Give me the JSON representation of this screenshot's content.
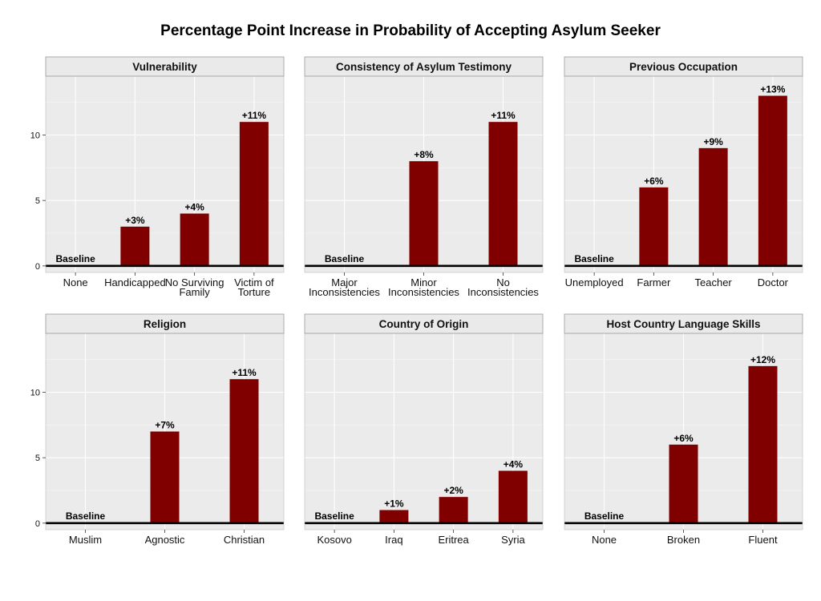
{
  "title": "Percentage Point Increase in Probability of Accepting Asylum Seeker",
  "colors": {
    "bar": "#800000",
    "panel_bg": "#ebebeb",
    "strip_bg": "#eaeaea",
    "grid": "#ffffff",
    "baseline": "#000000"
  },
  "baseline_label": "Baseline",
  "chart_data": [
    {
      "type": "bar",
      "title": "Vulnerability",
      "categories": [
        "None",
        "Handicapped",
        "No Surviving\nFamily",
        "Victim of\nTorture"
      ],
      "values": [
        0,
        3,
        4,
        11
      ],
      "labels": [
        "",
        "+3%",
        "+4%",
        "+11%"
      ],
      "ylim": [
        -0.5,
        14.5
      ],
      "yticks": [
        0,
        5,
        10
      ],
      "show_y_axis": true
    },
    {
      "type": "bar",
      "title": "Consistency of Asylum Testimony",
      "categories": [
        "Major\nInconsistencies",
        "Minor\nInconsistencies",
        "No\nInconsistencies"
      ],
      "values": [
        0,
        8,
        11
      ],
      "labels": [
        "",
        "+8%",
        "+11%"
      ],
      "ylim": [
        -0.5,
        14.5
      ],
      "yticks": [
        0,
        5,
        10
      ],
      "show_y_axis": false
    },
    {
      "type": "bar",
      "title": "Previous Occupation",
      "categories": [
        "Unemployed",
        "Farmer",
        "Teacher",
        "Doctor"
      ],
      "values": [
        0,
        6,
        9,
        13
      ],
      "labels": [
        "",
        "+6%",
        "+9%",
        "+13%"
      ],
      "ylim": [
        -0.5,
        14.5
      ],
      "yticks": [
        0,
        5,
        10
      ],
      "show_y_axis": false
    },
    {
      "type": "bar",
      "title": "Religion",
      "categories": [
        "Muslim",
        "Agnostic",
        "Christian"
      ],
      "values": [
        0,
        7,
        11
      ],
      "labels": [
        "",
        "+7%",
        "+11%"
      ],
      "ylim": [
        -0.5,
        14.5
      ],
      "yticks": [
        0,
        5,
        10
      ],
      "show_y_axis": true
    },
    {
      "type": "bar",
      "title": "Country of Origin",
      "categories": [
        "Kosovo",
        "Iraq",
        "Eritrea",
        "Syria"
      ],
      "values": [
        0,
        1,
        2,
        4
      ],
      "labels": [
        "",
        "+1%",
        "+2%",
        "+4%"
      ],
      "ylim": [
        -0.5,
        14.5
      ],
      "yticks": [
        0,
        5,
        10
      ],
      "show_y_axis": false
    },
    {
      "type": "bar",
      "title": "Host Country Language Skills",
      "categories": [
        "None",
        "Broken",
        "Fluent"
      ],
      "values": [
        0,
        6,
        12
      ],
      "labels": [
        "",
        "+6%",
        "+12%"
      ],
      "ylim": [
        -0.5,
        14.5
      ],
      "yticks": [
        0,
        5,
        10
      ],
      "show_y_axis": false
    }
  ]
}
